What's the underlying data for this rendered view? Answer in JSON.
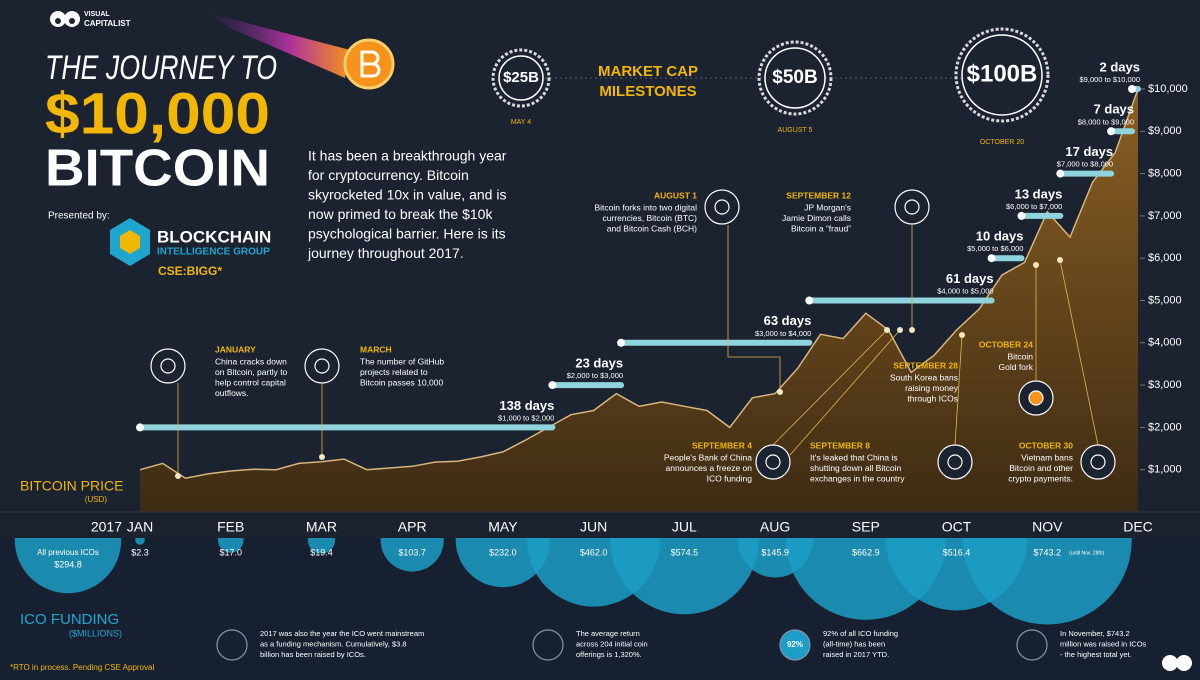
{
  "header": {
    "brand_top": "VISUAL",
    "brand_bottom": "CAPITALIST",
    "title_lines": [
      "THE JOURNEY TO",
      "$10,000",
      "BITCOIN"
    ],
    "intro_lines": [
      "It has been a breakthrough year",
      "for cryptocurrency. Bitcoin",
      "skyrocketed 10x in value, and is",
      "now primed to break the $10k",
      "psychological barrier. Here is its",
      "journey throughout 2017."
    ],
    "presented_by": "Presented by:",
    "sponsor_top": "BLOCKCHAIN",
    "sponsor_bottom": "INTELLIGENCE GROUP",
    "ticker": "CSE:BIGG*"
  },
  "market_cap": {
    "title_lines": [
      "MARKET CAP",
      "MILESTONES"
    ],
    "milestones": [
      {
        "label": "$25B",
        "date": "MAY 4"
      },
      {
        "label": "$50B",
        "date": "AUGUST 5"
      },
      {
        "label": "$100B",
        "date": "OCTOBER 20"
      }
    ]
  },
  "chart_data": [
    {
      "type": "area",
      "title": "BITCOIN PRICE",
      "subtitle": "(USD)",
      "year_label": "2017",
      "categories": [
        "JAN",
        null,
        null,
        null,
        "FEB",
        null,
        null,
        null,
        "MAR",
        null,
        null,
        null,
        "APR",
        null,
        null,
        null,
        "MAY",
        null,
        null,
        null,
        "JUN",
        null,
        null,
        null,
        "JUL",
        null,
        null,
        null,
        "AUG",
        null,
        null,
        null,
        "SEP",
        null,
        null,
        null,
        "OCT",
        null,
        null,
        null,
        "NOV",
        null,
        null,
        null,
        "DEC"
      ],
      "values": [
        1000,
        1150,
        800,
        900,
        970,
        1010,
        1000,
        1150,
        1190,
        1250,
        1000,
        1040,
        1080,
        1180,
        1200,
        1300,
        1420,
        1700,
        2000,
        2300,
        2400,
        2800,
        2500,
        2600,
        2500,
        2400,
        2000,
        2700,
        2800,
        3400,
        4200,
        4100,
        4700,
        4300,
        3300,
        3700,
        4300,
        4800,
        5600,
        5900,
        7100,
        6500,
        7800,
        8500,
        10000
      ],
      "color": "#6b4a1e",
      "line_color": "#d8b67c",
      "ylim": [
        0,
        10000
      ],
      "yticks": [
        {
          "value": 1000,
          "label": "$1,000"
        },
        {
          "value": 2000,
          "label": "$2,000"
        },
        {
          "value": 3000,
          "label": "$3,000"
        },
        {
          "value": 4000,
          "label": "$4,000"
        },
        {
          "value": 5000,
          "label": "$5,000"
        },
        {
          "value": 6000,
          "label": "$6,000"
        },
        {
          "value": 7000,
          "label": "$7,000"
        },
        {
          "value": 8000,
          "label": "$8,000"
        },
        {
          "value": 9000,
          "label": "$9,000"
        },
        {
          "value": 10000,
          "label": "$10,000"
        }
      ],
      "milestone_color": "#8fd3dc",
      "milestones": [
        {
          "days": 138,
          "label": "138 days",
          "range": "$1,000 to $2,000",
          "to": 2000
        },
        {
          "days": 23,
          "label": "23 days",
          "range": "$2,000 to $3,000",
          "to": 3000
        },
        {
          "days": 63,
          "label": "63 days",
          "range": "$3,000 to $4,000",
          "to": 4000
        },
        {
          "days": 61,
          "label": "61 days",
          "range": "$4,000 to $5,000",
          "to": 5000
        },
        {
          "days": 10,
          "label": "10 days",
          "range": "$5,000 to $6,000",
          "to": 6000
        },
        {
          "days": 13,
          "label": "13 days",
          "range": "$6,000 to $7,000",
          "to": 7000
        },
        {
          "days": 17,
          "label": "17 days",
          "range": "$7,000 to $8,000",
          "to": 8000
        },
        {
          "days": 7,
          "label": "7 days",
          "range": "$8,000 to $9,000",
          "to": 9000
        },
        {
          "days": 2,
          "label": "2 days",
          "range": "$9,000 to $10,000",
          "to": 10000
        }
      ]
    },
    {
      "type": "bubble",
      "title": "ICO FUNDING",
      "subtitle": "($MILLIONS)",
      "categories": [
        "All previous ICOs",
        null,
        null,
        null,
        null,
        null,
        null,
        null,
        null,
        null,
        null,
        null
      ],
      "values": [
        294.8,
        2.3,
        17.0,
        19.4,
        103.7,
        232.0,
        462.0,
        574.5,
        145.9,
        662.9,
        516.4,
        743.2
      ],
      "value_labels": [
        "$294.8",
        "$2.3",
        "$17.0",
        "$19.4",
        "$103.7",
        "$232.0",
        "$462.0",
        "$574.5",
        "$145.9",
        "$662.9",
        "$516.4",
        "$743.2"
      ],
      "note": "(until Nov. 28th)",
      "color": "#1c9ec6"
    }
  ],
  "events": [
    {
      "title": "JANUARY",
      "lines": [
        "China cracks down",
        "on Bitcoin, partly to",
        "help control capital",
        "outflows."
      ]
    },
    {
      "title": "MARCH",
      "lines": [
        "The number of GitHub",
        "projects related to",
        "Bitcoin passes 10,000"
      ]
    },
    {
      "title": "AUGUST 1",
      "lines": [
        "Bitcoin forks into two digital",
        "currencies, Bitcoin (BTC)",
        "and Bitcoin Cash (BCH)"
      ]
    },
    {
      "title": "SEPTEMBER 12",
      "lines": [
        "JP Morgan's",
        "Jamie Dimon calls",
        "Bitcoin a “fraud”"
      ]
    },
    {
      "title": "SEPTEMBER 4",
      "lines": [
        "People's Bank of China",
        "announces a freeze on",
        "ICO funding"
      ]
    },
    {
      "title": "SEPTEMBER 8",
      "lines": [
        "It's leaked that China is",
        "shutting down all Bitcoin",
        "exchanges in the country"
      ]
    },
    {
      "title": "SEPTEMBER 28",
      "lines": [
        "South Korea bans",
        "raising money",
        "through ICOs"
      ]
    },
    {
      "title": "OCTOBER 24",
      "lines": [
        "Bitcoin",
        "Gold fork"
      ]
    },
    {
      "title": "OCTOBER 30",
      "lines": [
        "Vietnam bans",
        "Bitcoin and other",
        "crypto payments."
      ]
    }
  ],
  "facts": [
    {
      "lines": [
        "2017 was also the year the ICO went mainstream",
        "as a funding mechanism. Cumulatively, $3.8",
        "billion has been raised by ICOs."
      ]
    },
    {
      "lines": [
        "The average return",
        "across 204 initial coin",
        "offerings is 1,320%."
      ]
    },
    {
      "badge": "92%",
      "lines": [
        "92% of all ICO funding",
        "(all-time) has been",
        "raised in 2017 YTD."
      ]
    },
    {
      "lines": [
        "In November, $743.2",
        "million was raised in ICOs",
        "- the highest total yet."
      ]
    }
  ],
  "footnote": "*RTO in process. Pending CSE Approval"
}
